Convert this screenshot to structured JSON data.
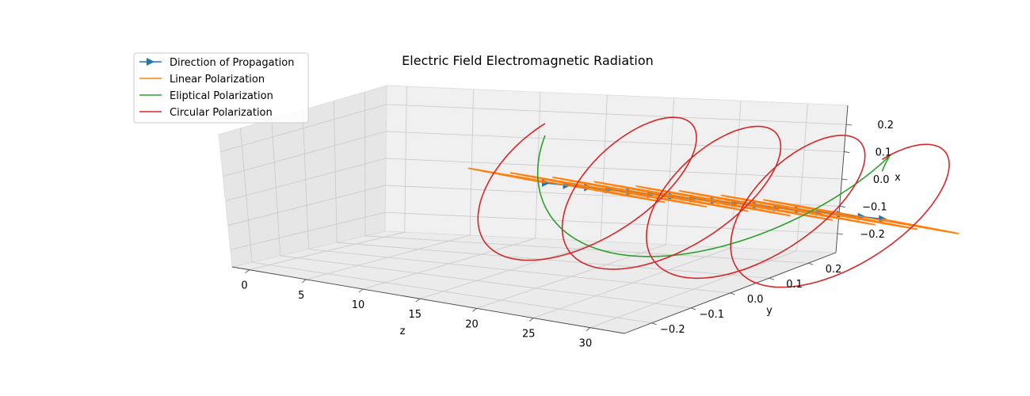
{
  "chart_data": {
    "type": "line",
    "projection": "3d",
    "title": "Electric Field Electromagnetic Radiation",
    "xlabel": "z",
    "ylabel": "y",
    "zlabel": "x",
    "z_axis_ticks": [
      "0",
      "5",
      "10",
      "15",
      "20",
      "25",
      "30"
    ],
    "y_axis_ticks": [
      "−0.2",
      "−0.1",
      "0.0",
      "0.1",
      "0.2"
    ],
    "x_axis_ticks": [
      "−0.2",
      "−0.1",
      "0.0",
      "0.1",
      "0.2"
    ],
    "zlim": [
      -1.5,
      33
    ],
    "ylim": [
      -0.27,
      0.27
    ],
    "xlim": [
      -0.27,
      0.27
    ],
    "grid": true,
    "legend_position": "top-left",
    "series": [
      {
        "name": "Direction of Propagation",
        "color": "#1f77b4",
        "marker": "triangle-right",
        "points": {
          "z": [
            0,
            2,
            4,
            6,
            8,
            10,
            12,
            14,
            16,
            18,
            20,
            22,
            24,
            26,
            28,
            30,
            32
          ],
          "y": [
            0,
            0,
            0,
            0,
            0,
            0,
            0,
            0,
            0,
            0,
            0,
            0,
            0,
            0,
            0,
            0,
            0
          ],
          "x": [
            0,
            0,
            0,
            0,
            0,
            0,
            0,
            0,
            0,
            0,
            0,
            0,
            0,
            0,
            0,
            0,
            0
          ]
        }
      },
      {
        "name": "Linear Polarization",
        "color": "#ff7f0e",
        "equation": {
          "x": "0.25*sin(z*pi/2)",
          "y": "0.25*sin(z*pi/2)"
        },
        "z_range": [
          0,
          32
        ],
        "samples": 1000
      },
      {
        "name": "Eliptical Polarization",
        "color": "#2ca02c",
        "equation": {
          "x": "0.2*cos(z*pi/16)",
          "y": "0.2*sin(z*pi/16)"
        },
        "z_range": [
          0,
          32
        ],
        "samples": 400
      },
      {
        "name": "Circular Polarization",
        "color": "#d62728",
        "equation": {
          "x": "0.25*cos(z*pi/4)",
          "y": "0.25*sin(z*pi/4)"
        },
        "z_range": [
          0,
          32
        ],
        "samples": 800
      }
    ]
  }
}
